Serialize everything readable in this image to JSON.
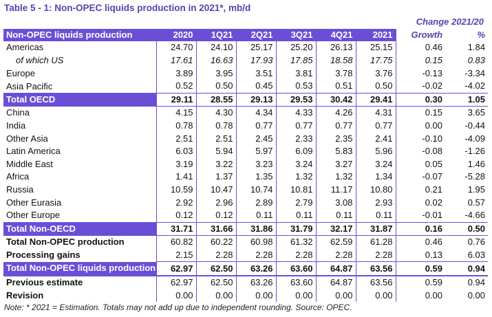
{
  "title": "Table 5 - 1: Non-OPEC liquids production in 2021*, mb/d",
  "header": {
    "change_label": "Change 2021/20",
    "row_label": "Non-OPEC liquids production",
    "columns": [
      "2020",
      "1Q21",
      "2Q21",
      "3Q21",
      "4Q21",
      "2021",
      "Growth",
      "%"
    ]
  },
  "rows": [
    {
      "label": "Americas",
      "values": [
        "24.70",
        "24.10",
        "25.17",
        "25.20",
        "26.13",
        "25.15",
        "0.46",
        "1.84"
      ],
      "style": "normal"
    },
    {
      "label": "of which US",
      "values": [
        "17.61",
        "16.63",
        "17.93",
        "17.85",
        "18.58",
        "17.75",
        "0.15",
        "0.83"
      ],
      "style": "italic"
    },
    {
      "label": "Europe",
      "values": [
        "3.89",
        "3.95",
        "3.51",
        "3.81",
        "3.78",
        "3.76",
        "-0.13",
        "-3.34"
      ],
      "style": "normal"
    },
    {
      "label": "Asia Pacific",
      "values": [
        "0.52",
        "0.50",
        "0.45",
        "0.53",
        "0.51",
        "0.50",
        "-0.02",
        "-4.02"
      ],
      "style": "normal"
    },
    {
      "label": "Total OECD",
      "values": [
        "29.11",
        "28.55",
        "29.13",
        "29.53",
        "30.42",
        "29.41",
        "0.30",
        "1.05"
      ],
      "style": "total"
    },
    {
      "label": "China",
      "values": [
        "4.15",
        "4.30",
        "4.34",
        "4.33",
        "4.26",
        "4.31",
        "0.15",
        "3.65"
      ],
      "style": "normal"
    },
    {
      "label": "India",
      "values": [
        "0.78",
        "0.78",
        "0.77",
        "0.77",
        "0.77",
        "0.77",
        "0.00",
        "-0.44"
      ],
      "style": "normal"
    },
    {
      "label": "Other Asia",
      "values": [
        "2.51",
        "2.51",
        "2.45",
        "2.33",
        "2.35",
        "2.41",
        "-0.10",
        "-4.09"
      ],
      "style": "normal"
    },
    {
      "label": "Latin America",
      "values": [
        "6.03",
        "5.94",
        "5.97",
        "6.09",
        "5.83",
        "5.96",
        "-0.08",
        "-1.26"
      ],
      "style": "normal"
    },
    {
      "label": "Middle East",
      "values": [
        "3.19",
        "3.22",
        "3.23",
        "3.24",
        "3.27",
        "3.24",
        "0.05",
        "1.46"
      ],
      "style": "normal"
    },
    {
      "label": "Africa",
      "values": [
        "1.41",
        "1.37",
        "1.35",
        "1.32",
        "1.32",
        "1.34",
        "-0.07",
        "-5.28"
      ],
      "style": "normal"
    },
    {
      "label": "Russia",
      "values": [
        "10.59",
        "10.47",
        "10.74",
        "10.81",
        "11.17",
        "10.80",
        "0.21",
        "1.95"
      ],
      "style": "normal"
    },
    {
      "label": "Other Eurasia",
      "values": [
        "2.92",
        "2.96",
        "2.89",
        "2.79",
        "3.08",
        "2.93",
        "0.02",
        "0.57"
      ],
      "style": "normal"
    },
    {
      "label": "Other Europe",
      "values": [
        "0.12",
        "0.12",
        "0.11",
        "0.11",
        "0.11",
        "0.11",
        "-0.01",
        "-4.66"
      ],
      "style": "normal"
    },
    {
      "label": "Total Non-OECD",
      "values": [
        "31.71",
        "31.66",
        "31.86",
        "31.79",
        "32.17",
        "31.87",
        "0.16",
        "0.50"
      ],
      "style": "total"
    },
    {
      "label": "Total Non-OPEC production",
      "values": [
        "60.82",
        "60.22",
        "60.98",
        "61.32",
        "62.59",
        "61.28",
        "0.46",
        "0.76"
      ],
      "style": "bold"
    },
    {
      "label": "Processing gains",
      "values": [
        "2.15",
        "2.28",
        "2.28",
        "2.28",
        "2.28",
        "2.28",
        "0.13",
        "6.03"
      ],
      "style": "bold"
    },
    {
      "label": "Total Non-OPEC liquids production",
      "values": [
        "62.97",
        "62.50",
        "63.26",
        "63.60",
        "64.87",
        "63.56",
        "0.59",
        "0.94"
      ],
      "style": "total"
    },
    {
      "label": "Previous estimate",
      "values": [
        "62.97",
        "62.50",
        "63.26",
        "63.60",
        "64.87",
        "63.56",
        "0.59",
        "0.94"
      ],
      "style": "bold"
    },
    {
      "label": "Revision",
      "values": [
        "0.00",
        "0.00",
        "0.00",
        "0.00",
        "0.00",
        "0.00",
        "0.00",
        "0.00"
      ],
      "style": "bold"
    }
  ],
  "note": "Note: * 2021 = Estimation. Totals may not add up due to independent rounding. Source: OPEC.",
  "colors": {
    "accent": "#6a4fd6",
    "title": "#5b3fb0"
  }
}
